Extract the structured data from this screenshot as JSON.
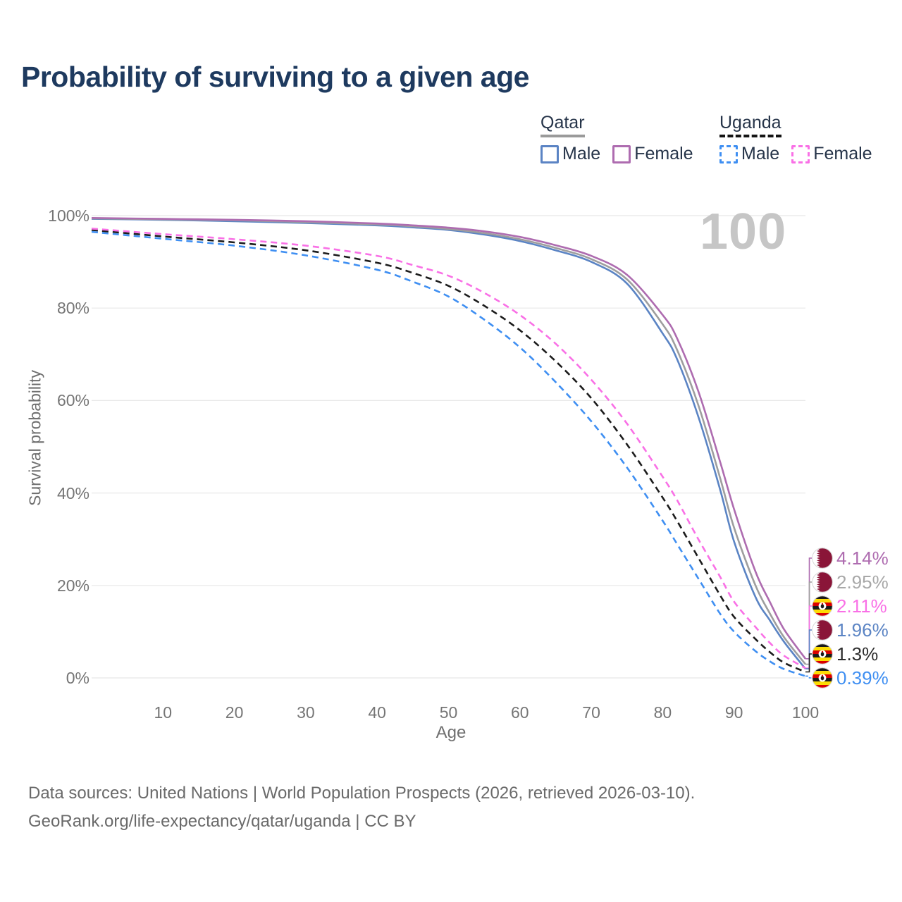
{
  "title": "Probability of surviving to a given age",
  "watermark_age": "100",
  "legend": {
    "groups": [
      {
        "label": "Qatar",
        "line_style": "solid",
        "rule_color": "#9a9a9a",
        "items": [
          {
            "label": "Male",
            "color": "#5b84c4"
          },
          {
            "label": "Female",
            "color": "#ae6cb0"
          }
        ]
      },
      {
        "label": "Uganda",
        "line_style": "dashed",
        "rule_color": "#141414",
        "items": [
          {
            "label": "Male",
            "color": "#3f8ff2"
          },
          {
            "label": "Female",
            "color": "#f970e6"
          }
        ]
      }
    ]
  },
  "chart_data": {
    "type": "line",
    "title": "Probability of surviving to a given age",
    "xlabel": "Age",
    "ylabel": "Survival probability",
    "xlim": [
      0,
      100
    ],
    "ylim": [
      0,
      100
    ],
    "x_ticks": [
      10,
      20,
      30,
      40,
      50,
      60,
      70,
      80,
      90,
      100
    ],
    "y_tick_labels": [
      "0%",
      "20%",
      "40%",
      "60%",
      "80%",
      "100%"
    ],
    "grid": "horizontal-only",
    "legend_position": "top-right",
    "x": [
      0,
      10,
      20,
      30,
      40,
      45,
      50,
      55,
      60,
      65,
      70,
      75,
      80,
      82,
      85,
      88,
      90,
      93,
      95,
      97,
      100
    ],
    "series": [
      {
        "name": "Qatar Female",
        "country": "Qatar",
        "sex": "Female",
        "style": "solid",
        "color": "#ae6cb0",
        "flag": "qatar",
        "end_label": "4.14%",
        "values": [
          99.5,
          99.3,
          99.1,
          98.8,
          98.3,
          97.9,
          97.4,
          96.6,
          95.4,
          93.6,
          91.3,
          87.2,
          78.5,
          73.5,
          62,
          47,
          36.5,
          23,
          16.5,
          10.5,
          4.14
        ]
      },
      {
        "name": "Qatar (both sexes)",
        "country": "Qatar",
        "sex": "Both",
        "style": "solid",
        "color": "#9e9e9e",
        "label_color": "#a8a8a8",
        "flag": "qatar",
        "end_label": "2.95%",
        "values": [
          99.4,
          99.2,
          99.0,
          98.6,
          98.1,
          97.7,
          97.1,
          96.2,
          94.9,
          93.0,
          90.6,
          86.2,
          76.5,
          71,
          59,
          43.5,
          32.5,
          20,
          14,
          8.8,
          2.95
        ]
      },
      {
        "name": "Uganda Female",
        "country": "Uganda",
        "sex": "Female",
        "style": "dashed",
        "color": "#f970e6",
        "flag": "uganda",
        "end_label": "2.11%",
        "values": [
          97.2,
          96.0,
          94.9,
          93.5,
          91.3,
          89.3,
          87.0,
          83.3,
          78.5,
          72.3,
          64.5,
          55,
          43.5,
          38.5,
          30,
          22,
          16.5,
          11,
          7.6,
          4.8,
          2.11
        ]
      },
      {
        "name": "Qatar Male",
        "country": "Qatar",
        "sex": "Male",
        "style": "solid",
        "color": "#5b84c4",
        "flag": "qatar",
        "end_label": "1.96%",
        "values": [
          99.3,
          99.1,
          98.8,
          98.4,
          97.9,
          97.45,
          96.9,
          95.9,
          94.5,
          92.5,
          90.0,
          85.3,
          74.5,
          69,
          56.5,
          41,
          29.5,
          17.5,
          12.5,
          7.8,
          1.96
        ]
      },
      {
        "name": "Uganda (both sexes)",
        "country": "Uganda",
        "sex": "Both",
        "style": "dashed",
        "color": "#1c1c1c",
        "label_color": "#2b2b2b",
        "flag": "uganda",
        "end_label": "1.3%",
        "values": [
          96.9,
          95.5,
          94.2,
          92.5,
          89.8,
          87.6,
          84.8,
          80.5,
          75.2,
          68.5,
          60.5,
          50.5,
          39,
          34,
          26,
          18,
          13.2,
          8.4,
          5.6,
          3.3,
          1.3
        ]
      },
      {
        "name": "Uganda Male",
        "country": "Uganda",
        "sex": "Male",
        "style": "dashed",
        "color": "#3f8ff2",
        "flag": "uganda",
        "end_label": "0.39%",
        "values": [
          96.5,
          95.0,
          93.5,
          91.4,
          88.3,
          85.7,
          82.5,
          77.5,
          71.5,
          64,
          55.5,
          45.5,
          34,
          29,
          21.5,
          14,
          10,
          5.8,
          3.6,
          1.9,
          0.39
        ]
      }
    ]
  },
  "footer": {
    "line1": "Data sources: United Nations | World Population Prospects (2026, retrieved 2026-03-10).",
    "line2": "GeoRank.org/life-expectancy/qatar/uganda | CC BY"
  },
  "colors": {
    "title": "#1e3a5f",
    "axis_text": "#757575",
    "gridline": "#e8e8e8",
    "watermark": "#c6c6c6",
    "qatar_flag_maroon": "#8a1538",
    "uganda_yellow": "#fcdc04",
    "uganda_red": "#d90000"
  }
}
